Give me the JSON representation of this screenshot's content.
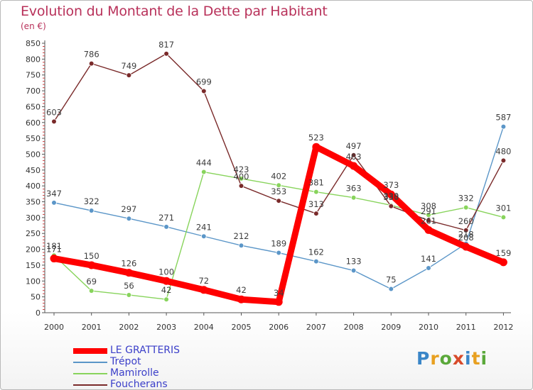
{
  "chart_data": {
    "type": "line",
    "title": "Evolution du Montant de la Dette par Habitant",
    "subtitle": "(en €)",
    "categories": [
      "2000",
      "2001",
      "2002",
      "2003",
      "2004",
      "2005",
      "2006",
      "2007",
      "2008",
      "2009",
      "2010",
      "2011",
      "2012"
    ],
    "y_ticks": [
      "0",
      "50",
      "100",
      "150",
      "200",
      "250",
      "300",
      "350",
      "400",
      "450",
      "500",
      "550",
      "600",
      "650",
      "700",
      "750",
      "800",
      "850"
    ],
    "ylim": [
      0,
      850
    ],
    "grid": false,
    "legend_position": "bottom-left",
    "series": [
      {
        "name": "LE GRATTERIS",
        "color": "#ff0000",
        "values": [
          171,
          150,
          126,
          100,
          72,
          42,
          34,
          523,
          463,
          373,
          261,
          208,
          159
        ]
      },
      {
        "name": "Trépot",
        "color": "#5b96c8",
        "values": [
          347,
          322,
          297,
          271,
          241,
          212,
          189,
          162,
          133,
          75,
          141,
          218,
          587
        ]
      },
      {
        "name": "Mamirolle",
        "color": "#88d45c",
        "values": [
          181,
          69,
          56,
          42,
          444,
          423,
          402,
          381,
          363,
          339,
          308,
          332,
          301
        ]
      },
      {
        "name": "Foucherans",
        "color": "#7a2a2a",
        "values": [
          603,
          786,
          749,
          817,
          699,
          400,
          353,
          313,
          497,
          336,
          291,
          260,
          480
        ]
      }
    ]
  },
  "logo": {
    "text": "Proxiti"
  }
}
